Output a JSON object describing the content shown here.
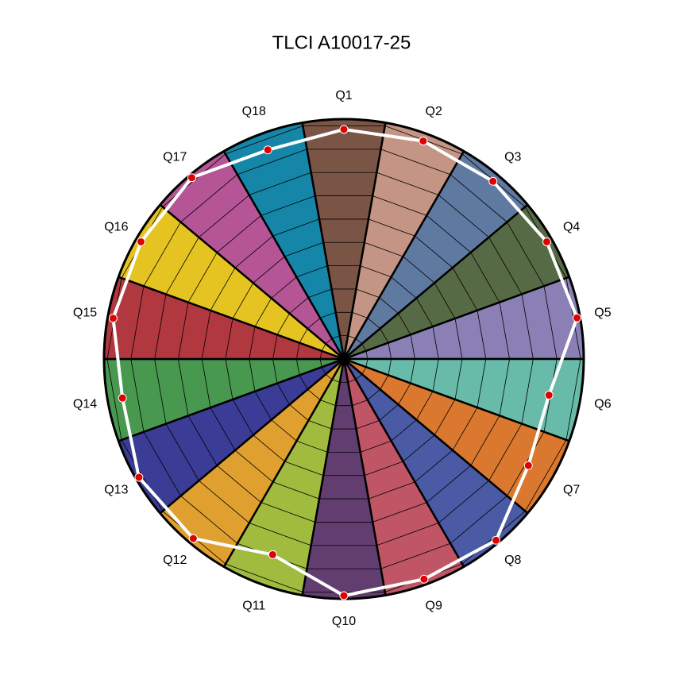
{
  "chart_data": {
    "type": "radar",
    "title": "TLCI A10017-25",
    "categories": [
      "Q1",
      "Q2",
      "Q3",
      "Q4",
      "Q5",
      "Q6",
      "Q7",
      "Q8",
      "Q9",
      "Q10",
      "Q11",
      "Q12",
      "Q13",
      "Q14",
      "Q15",
      "Q16",
      "Q17",
      "Q18"
    ],
    "category_colors": [
      "#7a5545",
      "#c49484",
      "#5f7aa0",
      "#566b45",
      "#8a80b5",
      "#68bba8",
      "#d9782e",
      "#4b5aa5",
      "#c05566",
      "#623e70",
      "#a0bb3e",
      "#e0a030",
      "#3a3c95",
      "#489850",
      "#b23840",
      "#e5c422",
      "#b65596",
      "#1586a8"
    ],
    "series": [
      {
        "color": "#ffffff",
        "marker_color": "#e00000",
        "values": [
          97,
          98,
          98,
          99,
          100,
          88,
          90,
          100,
          99,
          100,
          88,
          99,
          100,
          95,
          99,
          99,
          100,
          94
        ]
      }
    ],
    "ylim": [
      0,
      100
    ],
    "yticks": [
      10,
      20,
      30,
      40,
      50,
      60,
      70,
      80,
      90,
      100
    ],
    "grid": true
  }
}
